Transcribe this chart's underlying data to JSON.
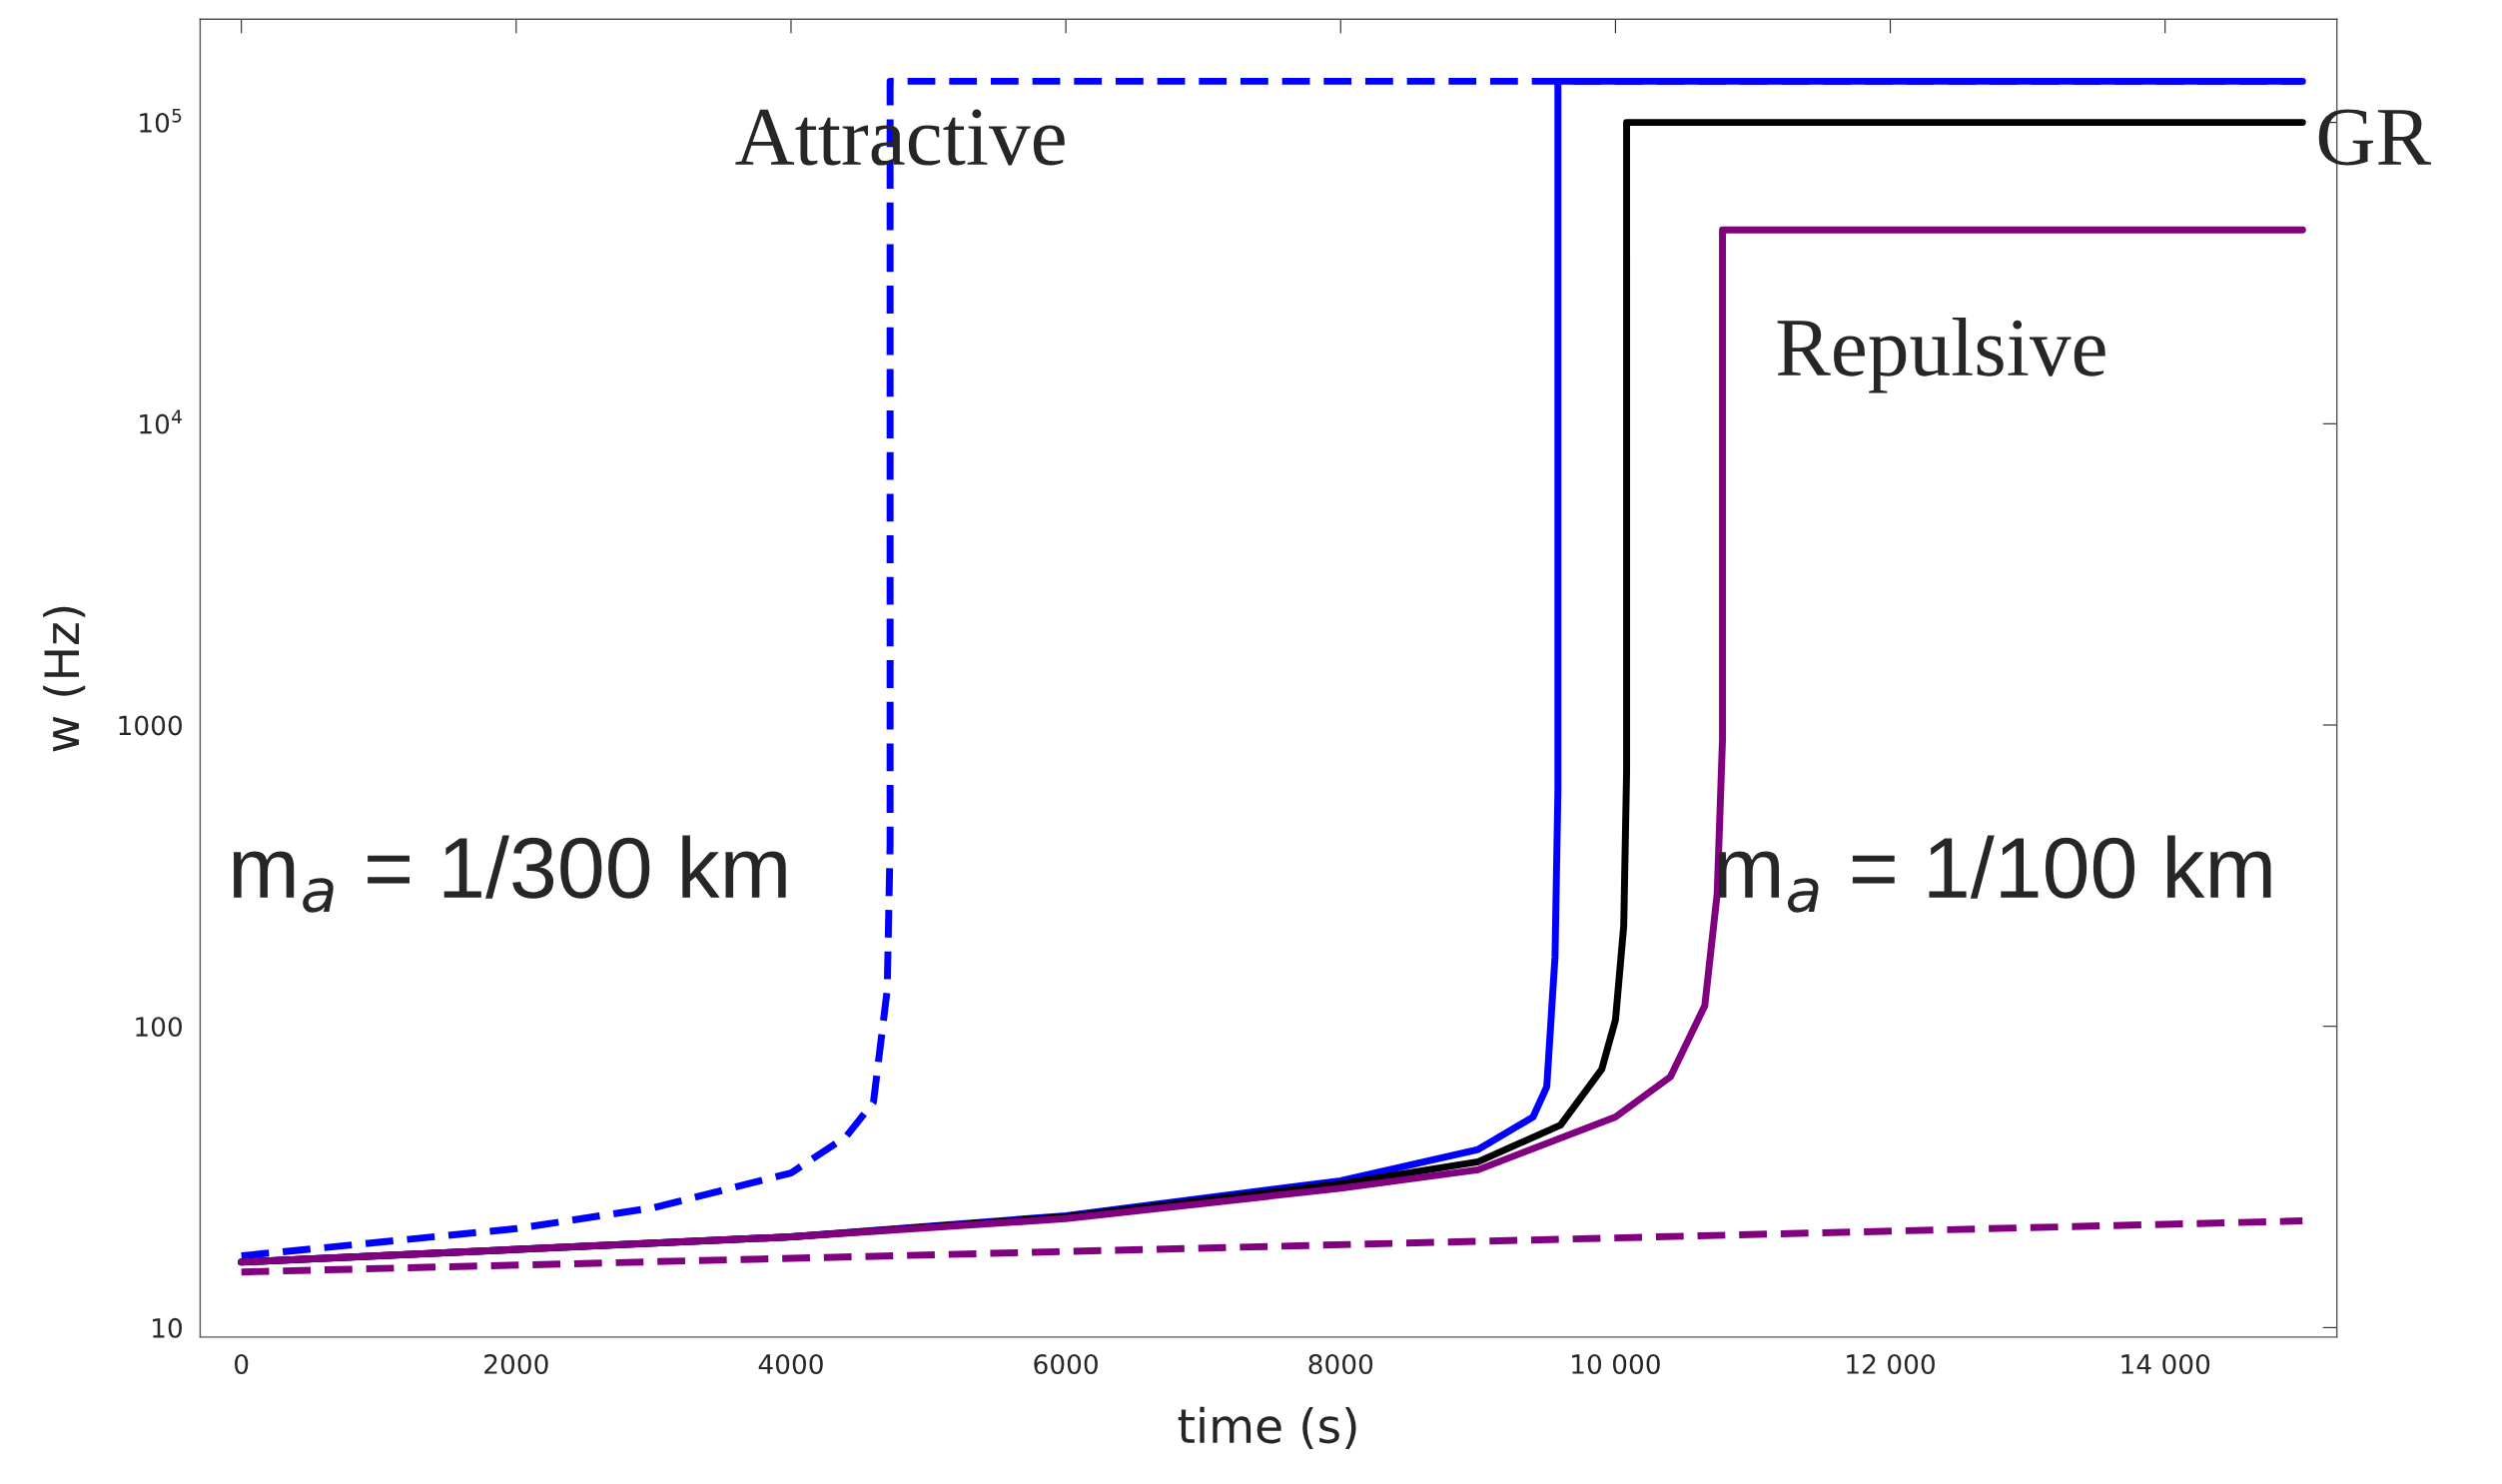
{
  "chart_data": {
    "type": "line",
    "xlabel": "time (s)",
    "ylabel": "w (Hz)",
    "log": "y",
    "grid": false,
    "legend": false,
    "xlim": [
      -300,
      15250
    ],
    "ylim": [
      9.3,
      220000
    ],
    "xticks": [
      0,
      2000,
      4000,
      6000,
      8000,
      {
        "value": 10000,
        "label": "10 000"
      },
      {
        "value": 12000,
        "label": "12 000"
      },
      {
        "value": 14000,
        "label": "14 000"
      }
    ],
    "yticks": [
      10,
      100,
      1000,
      {
        "value": 10000,
        "label": "10$^{4}$"
      },
      {
        "value": 100000,
        "label": "10$^{5}$"
      }
    ],
    "series": [
      {
        "color": "#0000ff",
        "line_style": "dashed",
        "x": [
          0,
          2000,
          3000,
          4000,
          4400,
          4600,
          4700,
          4721,
          4721,
          15000
        ],
        "values": [
          17.3,
          21.3,
          25,
          32.6,
          43,
          56,
          132,
          400,
          137000,
          137000
        ]
      },
      {
        "color": "#0000ff",
        "line_style": "solid",
        "x": [
          0,
          4000,
          6000,
          8000,
          9000,
          9400,
          9500,
          9560,
          9581,
          9581,
          15000
        ],
        "values": [
          16.5,
          20,
          23.5,
          30.7,
          39,
          50,
          63,
          170,
          600,
          137000,
          137000
        ]
      },
      {
        "color": "#000000",
        "line_style": "solid",
        "x": [
          0,
          4000,
          6000,
          8000,
          9000,
          9600,
          9900,
          10000,
          10060,
          10081,
          10081,
          15000
        ],
        "values": [
          16.5,
          20,
          23.3,
          30,
          35.5,
          47,
          72,
          105,
          215,
          700,
          100000,
          100000
        ]
      },
      {
        "color": "#800080",
        "line_style": "solid",
        "x": [
          0,
          4000,
          6000,
          8000,
          9000,
          10000,
          10400,
          10650,
          10740,
          10779,
          10779,
          15000
        ],
        "values": [
          16.5,
          20,
          23,
          29,
          33.4,
          50,
          68,
          117,
          275,
          900,
          44000,
          44000
        ]
      },
      {
        "color": "#800080",
        "line_style": "dashed",
        "x": [
          0,
          15000
        ],
        "values": [
          15.3,
          22.6
        ]
      }
    ],
    "annotations": [
      "Attractive",
      "GR",
      "Repulsive",
      "m$_{a}$ = 1/300 km",
      "m$_{a}$ = 1/100 km"
    ]
  }
}
